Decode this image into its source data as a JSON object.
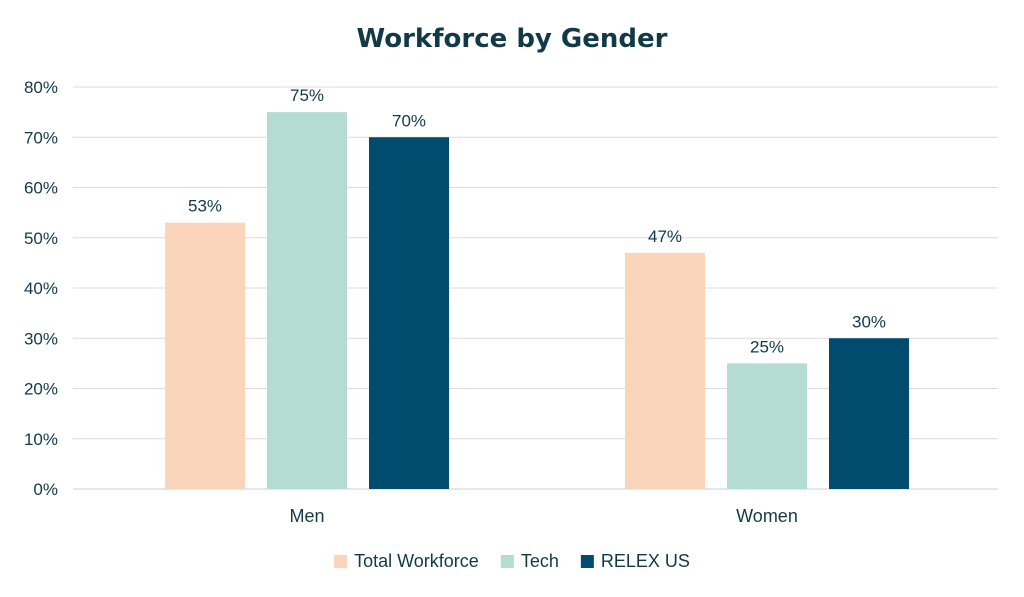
{
  "chart_data": {
    "type": "bar",
    "title": "Workforce by Gender",
    "categories": [
      "Men",
      "Women"
    ],
    "series": [
      {
        "name": "Total Workforce",
        "color": "#fbd5bb",
        "values": [
          53,
          47
        ]
      },
      {
        "name": "Tech",
        "color": "#b5dcd3",
        "values": [
          75,
          25
        ]
      },
      {
        "name": "RELEX US",
        "color": "#004b6e",
        "values": [
          70,
          30
        ]
      }
    ],
    "value_suffix": "%",
    "ylim": [
      0,
      80
    ],
    "yticks": [
      0,
      10,
      20,
      30,
      40,
      50,
      60,
      70,
      80
    ],
    "ytick_labels": [
      "0%",
      "10%",
      "20%",
      "30%",
      "40%",
      "50%",
      "60%",
      "70%",
      "80%"
    ],
    "grid": true,
    "legend_position": "bottom"
  }
}
